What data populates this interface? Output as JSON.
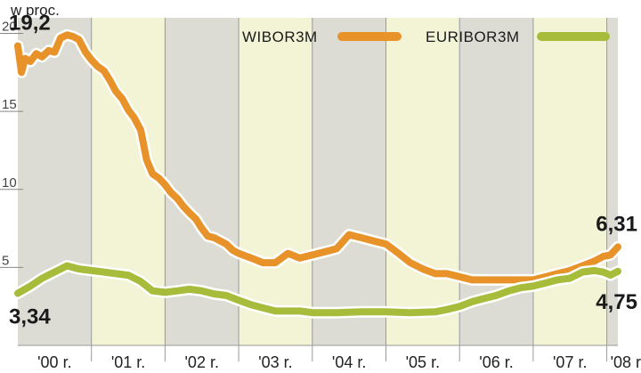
{
  "chart_data": {
    "type": "line",
    "unit_label": "w proc.",
    "x_start": 2000.0,
    "x_end": 2008.15,
    "ylim": [
      0,
      21
    ],
    "y_ticks": [
      {
        "label": "5",
        "value": 5
      },
      {
        "label": "10",
        "value": 10
      },
      {
        "label": "15",
        "value": 15
      },
      {
        "label": "20",
        "value": 20
      }
    ],
    "x_ticks": [
      {
        "label": "'00 r.",
        "from": 2000,
        "to": 2001
      },
      {
        "label": "'01 r.",
        "from": 2001,
        "to": 2002
      },
      {
        "label": "'02 r.",
        "from": 2002,
        "to": 2003
      },
      {
        "label": "'03 r.",
        "from": 2003,
        "to": 2004
      },
      {
        "label": "'04 r.",
        "from": 2004,
        "to": 2005
      },
      {
        "label": "'05 r.",
        "from": 2005,
        "to": 2006
      },
      {
        "label": "'06 r.",
        "from": 2006,
        "to": 2007
      },
      {
        "label": "'07 r.",
        "from": 2007,
        "to": 2008
      },
      {
        "label": "'08 r.",
        "from": 2008,
        "to": 2008.15
      }
    ],
    "band_colors": [
      "#dcdcd4",
      "#f3f3d6"
    ],
    "series": [
      {
        "name": "WIBOR3M",
        "color": "#e8922a",
        "points": [
          [
            2000.0,
            19.2
          ],
          [
            2000.05,
            17.5
          ],
          [
            2000.1,
            18.4
          ],
          [
            2000.17,
            18.2
          ],
          [
            2000.25,
            18.7
          ],
          [
            2000.33,
            18.5
          ],
          [
            2000.42,
            18.9
          ],
          [
            2000.5,
            18.8
          ],
          [
            2000.58,
            19.7
          ],
          [
            2000.67,
            19.9
          ],
          [
            2000.75,
            19.8
          ],
          [
            2000.83,
            19.6
          ],
          [
            2000.92,
            18.8
          ],
          [
            2001.0,
            18.3
          ],
          [
            2001.08,
            17.9
          ],
          [
            2001.17,
            17.6
          ],
          [
            2001.25,
            17.0
          ],
          [
            2001.33,
            16.3
          ],
          [
            2001.42,
            15.8
          ],
          [
            2001.5,
            15.1
          ],
          [
            2001.58,
            14.6
          ],
          [
            2001.67,
            13.8
          ],
          [
            2001.75,
            11.9
          ],
          [
            2001.83,
            11.0
          ],
          [
            2001.92,
            10.7
          ],
          [
            2002.0,
            10.3
          ],
          [
            2002.08,
            9.8
          ],
          [
            2002.17,
            9.4
          ],
          [
            2002.25,
            8.9
          ],
          [
            2002.33,
            8.5
          ],
          [
            2002.42,
            8.1
          ],
          [
            2002.5,
            7.5
          ],
          [
            2002.58,
            7.0
          ],
          [
            2002.67,
            6.9
          ],
          [
            2002.75,
            6.7
          ],
          [
            2002.83,
            6.5
          ],
          [
            2002.92,
            6.1
          ],
          [
            2003.0,
            5.9
          ],
          [
            2003.17,
            5.6
          ],
          [
            2003.33,
            5.3
          ],
          [
            2003.5,
            5.3
          ],
          [
            2003.67,
            5.9
          ],
          [
            2003.83,
            5.6
          ],
          [
            2004.0,
            5.8
          ],
          [
            2004.17,
            6.0
          ],
          [
            2004.33,
            6.2
          ],
          [
            2004.5,
            7.1
          ],
          [
            2004.67,
            6.9
          ],
          [
            2004.83,
            6.7
          ],
          [
            2005.0,
            6.5
          ],
          [
            2005.17,
            5.9
          ],
          [
            2005.33,
            5.3
          ],
          [
            2005.5,
            4.9
          ],
          [
            2005.67,
            4.6
          ],
          [
            2005.83,
            4.6
          ],
          [
            2006.0,
            4.4
          ],
          [
            2006.17,
            4.2
          ],
          [
            2006.33,
            4.2
          ],
          [
            2006.5,
            4.2
          ],
          [
            2006.67,
            4.2
          ],
          [
            2006.83,
            4.2
          ],
          [
            2007.0,
            4.2
          ],
          [
            2007.17,
            4.4
          ],
          [
            2007.33,
            4.6
          ],
          [
            2007.5,
            4.8
          ],
          [
            2007.67,
            5.1
          ],
          [
            2007.83,
            5.4
          ],
          [
            2007.95,
            5.7
          ],
          [
            2008.05,
            5.8
          ],
          [
            2008.15,
            6.31
          ]
        ]
      },
      {
        "name": "EURIBOR3M",
        "color": "#a8bc3c",
        "points": [
          [
            2000.0,
            3.34
          ],
          [
            2000.17,
            3.8
          ],
          [
            2000.33,
            4.3
          ],
          [
            2000.5,
            4.7
          ],
          [
            2000.67,
            5.1
          ],
          [
            2000.83,
            4.9
          ],
          [
            2001.0,
            4.8
          ],
          [
            2001.17,
            4.7
          ],
          [
            2001.33,
            4.6
          ],
          [
            2001.5,
            4.5
          ],
          [
            2001.67,
            4.1
          ],
          [
            2001.83,
            3.5
          ],
          [
            2002.0,
            3.4
          ],
          [
            2002.17,
            3.5
          ],
          [
            2002.33,
            3.6
          ],
          [
            2002.5,
            3.5
          ],
          [
            2002.67,
            3.3
          ],
          [
            2002.83,
            3.2
          ],
          [
            2003.0,
            2.9
          ],
          [
            2003.17,
            2.6
          ],
          [
            2003.33,
            2.4
          ],
          [
            2003.5,
            2.2
          ],
          [
            2003.67,
            2.2
          ],
          [
            2003.83,
            2.2
          ],
          [
            2004.0,
            2.1
          ],
          [
            2004.33,
            2.1
          ],
          [
            2004.67,
            2.15
          ],
          [
            2005.0,
            2.15
          ],
          [
            2005.33,
            2.1
          ],
          [
            2005.67,
            2.15
          ],
          [
            2005.83,
            2.3
          ],
          [
            2006.0,
            2.5
          ],
          [
            2006.17,
            2.8
          ],
          [
            2006.33,
            3.0
          ],
          [
            2006.5,
            3.2
          ],
          [
            2006.67,
            3.5
          ],
          [
            2006.83,
            3.7
          ],
          [
            2007.0,
            3.8
          ],
          [
            2007.17,
            4.0
          ],
          [
            2007.33,
            4.2
          ],
          [
            2007.5,
            4.3
          ],
          [
            2007.67,
            4.7
          ],
          [
            2007.83,
            4.8
          ],
          [
            2007.95,
            4.7
          ],
          [
            2008.05,
            4.5
          ],
          [
            2008.15,
            4.75
          ]
        ]
      }
    ],
    "callouts": [
      {
        "text": "19,2",
        "series": "WIBOR3M",
        "at": "start"
      },
      {
        "text": "3,34",
        "series": "EURIBOR3M",
        "at": "start"
      },
      {
        "text": "6,31",
        "series": "WIBOR3M",
        "at": "end"
      },
      {
        "text": "4,75",
        "series": "EURIBOR3M",
        "at": "end"
      }
    ],
    "legend": {
      "placement": "top-right"
    }
  }
}
